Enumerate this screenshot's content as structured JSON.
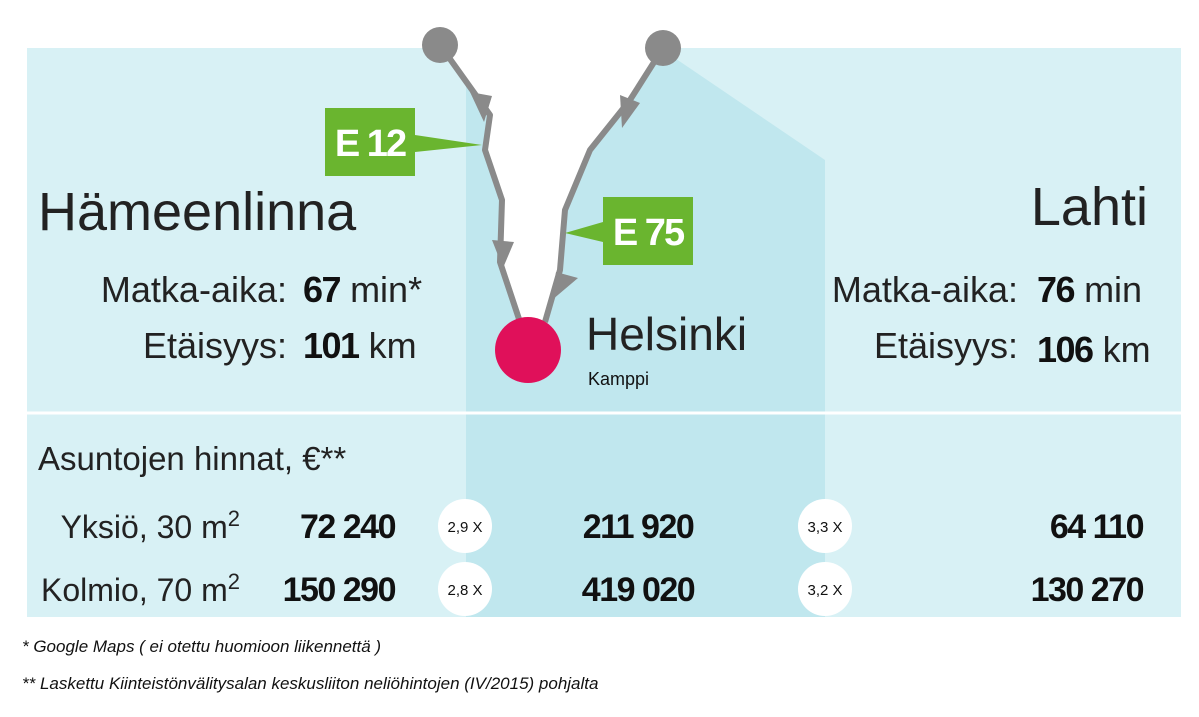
{
  "cities": {
    "hameenlinna": {
      "name": "Hämeenlinna",
      "travel_label": "Matka-aika:",
      "travel_value": "67",
      "travel_unit": "min*",
      "distance_label": "Etäisyys:",
      "distance_value": "101",
      "distance_unit": "km"
    },
    "lahti": {
      "name": "Lahti",
      "travel_label": "Matka-aika:",
      "travel_value": "76",
      "travel_unit": "min",
      "distance_label": "Etäisyys:",
      "distance_value": "106",
      "distance_unit": "km"
    }
  },
  "roads": [
    "E 12",
    "E 75"
  ],
  "center": {
    "name": "Helsinki",
    "sub": "Kamppi"
  },
  "prices": {
    "title": "Asuntojen hinnat, €**",
    "rows": [
      {
        "label": "Yksiö, 30 m",
        "sup": "2",
        "hameenlinna": "72 240",
        "ratio_left": "2,9 X",
        "helsinki": "211 920",
        "ratio_right": "3,3 X",
        "lahti": "64 110"
      },
      {
        "label": "Kolmio, 70 m",
        "sup": "2",
        "hameenlinna": "150 290",
        "ratio_left": "2,8 X",
        "helsinki": "419 020",
        "ratio_right": "3,2 X",
        "lahti": "130 270"
      }
    ]
  },
  "footnotes": [
    "* Google Maps ( ei otettu huomioon liikennettä )",
    "** Laskettu Kiinteistönvälitysalan keskusliiton neliöhintojen (IV/2015) pohjalta"
  ]
}
